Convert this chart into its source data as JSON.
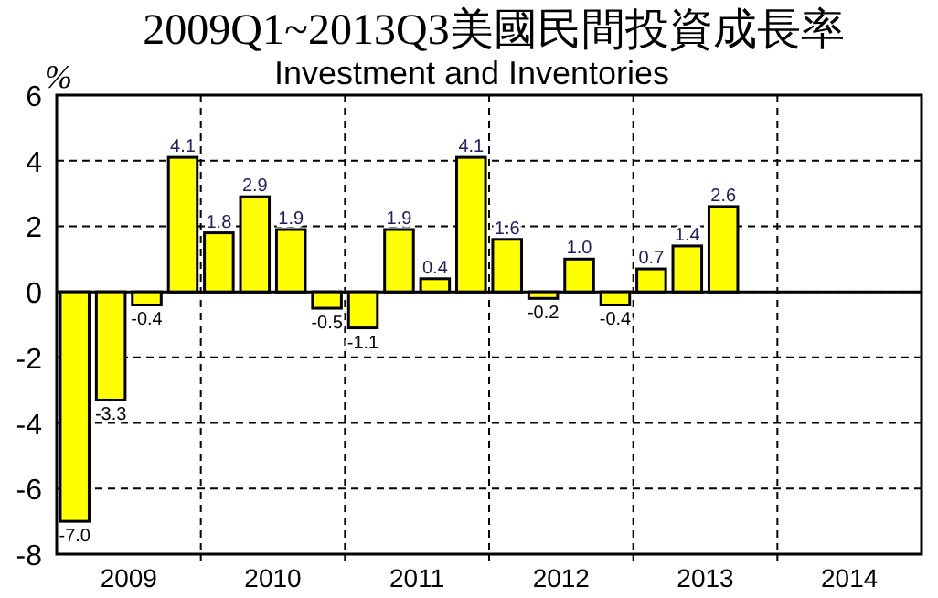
{
  "chart_data": {
    "type": "bar",
    "title": "2009Q1~2013Q3美國民間投資成長率",
    "subtitle": "Investment and Inventories",
    "ylabel": "%",
    "x": [
      2009.125,
      2009.375,
      2009.625,
      2009.875,
      2010.125,
      2010.375,
      2010.625,
      2010.875,
      2011.125,
      2011.375,
      2011.625,
      2011.875,
      2012.125,
      2012.375,
      2012.625,
      2012.875,
      2013.125,
      2013.375,
      2013.625
    ],
    "values": [
      -7.0,
      -3.3,
      -0.4,
      4.1,
      1.8,
      2.9,
      1.9,
      -0.5,
      -1.1,
      1.9,
      0.4,
      4.1,
      1.6,
      -0.2,
      1.0,
      -0.4,
      0.7,
      1.4,
      2.6
    ],
    "value_labels": [
      "-7.0",
      "-3.3",
      "-0.4",
      "4.1",
      "1.8",
      "2.9",
      "1.9",
      "-0.5",
      "-1.1",
      "1.9",
      "0.4",
      "4.1",
      "1.6",
      "-0.2",
      "1.0",
      "-0.4",
      "0.7",
      "1.4",
      "2.6"
    ],
    "color": "#ffff00",
    "xlim": [
      2009,
      2015
    ],
    "xticks": [
      {
        "value": 2009.5,
        "label": "2009"
      },
      {
        "value": 2010,
        "label": null
      },
      {
        "value": 2010.5,
        "label": "2010"
      },
      {
        "value": 2011,
        "label": null
      },
      {
        "value": 2011.5,
        "label": "2011"
      },
      {
        "value": 2012,
        "label": null
      },
      {
        "value": 2012.5,
        "label": "2012"
      },
      {
        "value": 2013,
        "label": null
      },
      {
        "value": 2013.5,
        "label": "2013"
      },
      {
        "value": 2014,
        "label": null
      },
      {
        "value": 2014.5,
        "label": "2014"
      }
    ],
    "ylim": [
      -8,
      6
    ],
    "yticks": [
      -8,
      -6,
      -4,
      -2,
      0,
      2,
      4,
      6
    ],
    "grid": true
  }
}
